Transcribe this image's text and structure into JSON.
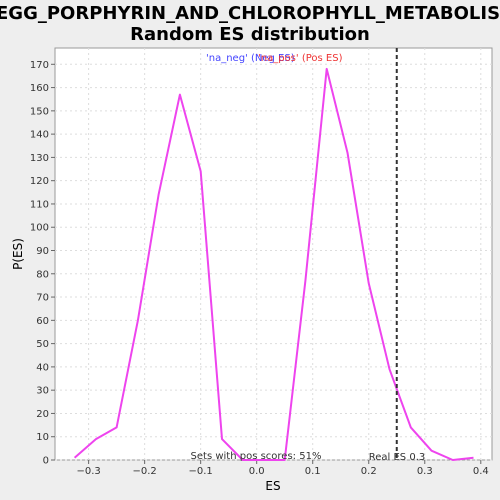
{
  "chart_data": {
    "type": "line",
    "title_line1": "KEGG_PORPHYRIN_AND_CHLOROPHYLL_METABOLISM",
    "title_line2": "Random ES distribution",
    "xlabel": "ES",
    "ylabel": "P(ES)",
    "xlim": [
      -0.36,
      0.42
    ],
    "ylim": [
      0,
      177
    ],
    "x_ticks": [
      -0.3,
      -0.2,
      -0.1,
      0.0,
      0.1,
      0.2,
      0.3,
      0.4
    ],
    "x_tick_labels": [
      "−0.3",
      "−0.2",
      "−0.1",
      "0.0",
      "0.1",
      "0.2",
      "0.3",
      "0.4"
    ],
    "y_ticks": [
      0,
      10,
      20,
      30,
      40,
      50,
      60,
      70,
      80,
      90,
      100,
      110,
      120,
      130,
      140,
      150,
      160,
      170
    ],
    "grid": true,
    "legend": [
      {
        "label": "'na_neg' (Neg ES)",
        "color": "#4444ff"
      },
      {
        "label": "'na_pos' (Pos ES)",
        "color": "#ee3333"
      }
    ],
    "series": [
      {
        "color": "#ee44ee",
        "x": [
          -0.325,
          -0.287,
          -0.25,
          -0.212,
          -0.175,
          -0.137,
          -0.1,
          -0.062,
          -0.025,
          0.012,
          0.05,
          0.087,
          0.125,
          0.162,
          0.2,
          0.237,
          0.275,
          0.312,
          0.35,
          0.387
        ],
        "y": [
          1,
          9,
          14,
          60,
          114,
          157,
          124,
          9,
          0,
          0,
          0,
          77,
          168,
          132,
          76,
          39,
          14,
          4,
          0,
          1
        ]
      }
    ],
    "real_es": 0.25,
    "real_es_label": "Real ES 0.3",
    "footer_note": "Sets with pos scores: 51%"
  }
}
